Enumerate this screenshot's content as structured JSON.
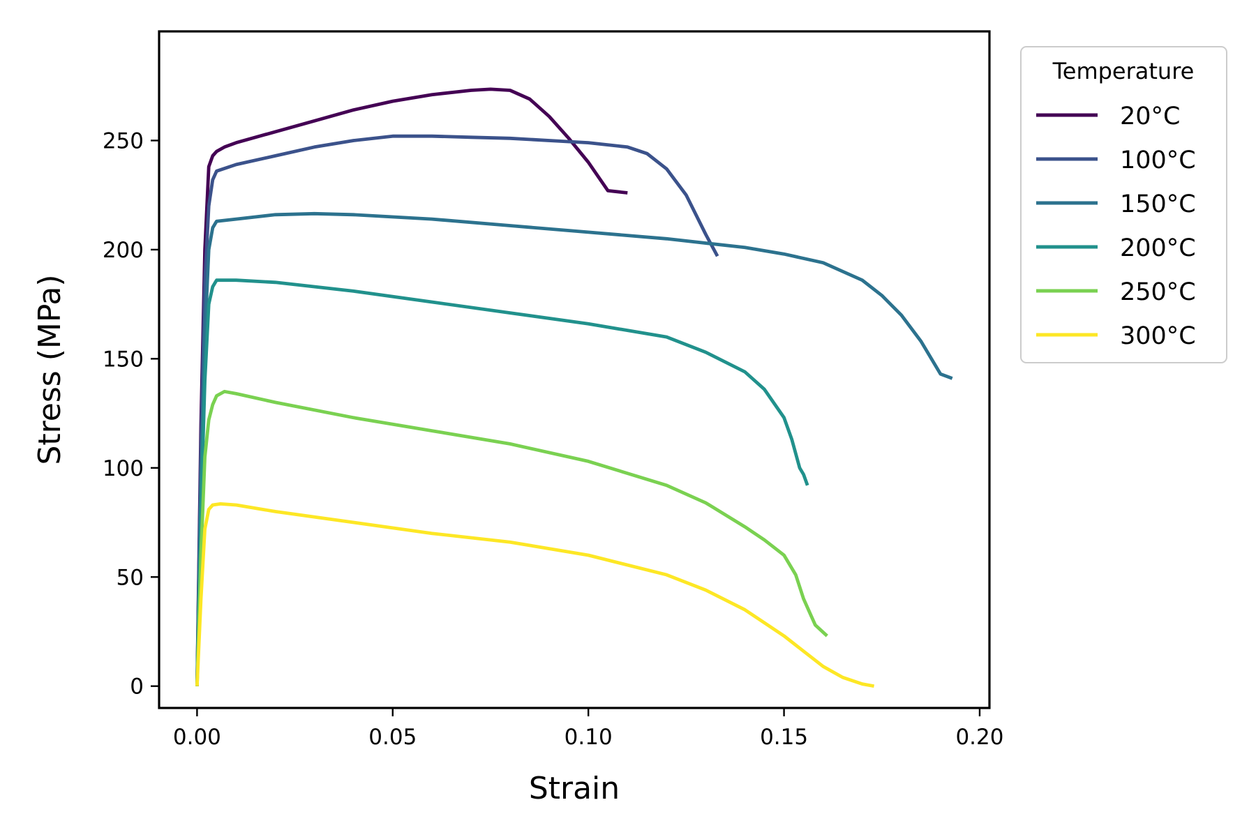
{
  "chart_data": {
    "type": "line",
    "title": "",
    "xlabel": "Strain",
    "ylabel": "Stress (MPa)",
    "xlim": [
      -0.0097,
      0.2025
    ],
    "ylim": [
      -10,
      300
    ],
    "xticks": [
      0.0,
      0.05,
      0.1,
      0.15,
      0.2
    ],
    "xtick_labels": [
      "0.00",
      "0.05",
      "0.10",
      "0.15",
      "0.20"
    ],
    "yticks": [
      0,
      50,
      100,
      150,
      200,
      250
    ],
    "ytick_labels": [
      "0",
      "50",
      "100",
      "150",
      "200",
      "250"
    ],
    "grid": false,
    "legend": {
      "title": "Temperature",
      "position": "outside-top-right"
    },
    "series": [
      {
        "name": "20°C",
        "color": "#440154",
        "x": [
          0.0,
          0.001,
          0.002,
          0.003,
          0.004,
          0.005,
          0.007,
          0.01,
          0.02,
          0.03,
          0.04,
          0.05,
          0.06,
          0.07,
          0.075,
          0.08,
          0.085,
          0.09,
          0.095,
          0.1,
          0.105,
          0.11
        ],
        "y": [
          0,
          120,
          200,
          238,
          243,
          245,
          247,
          249,
          254,
          259,
          264,
          268,
          271,
          273,
          273.5,
          273,
          269,
          261,
          251,
          240,
          227,
          226
        ]
      },
      {
        "name": "100°C",
        "color": "#3b528b",
        "x": [
          0.0,
          0.001,
          0.002,
          0.003,
          0.004,
          0.005,
          0.01,
          0.02,
          0.03,
          0.04,
          0.05,
          0.06,
          0.07,
          0.08,
          0.09,
          0.1,
          0.11,
          0.115,
          0.12,
          0.125,
          0.13,
          0.133
        ],
        "y": [
          0,
          110,
          185,
          220,
          232,
          236,
          239,
          243,
          247,
          250,
          252,
          252,
          251.5,
          251,
          250,
          249,
          247,
          244,
          237,
          225,
          207,
          197
        ]
      },
      {
        "name": "150°C",
        "color": "#2c728e",
        "x": [
          0.0,
          0.001,
          0.002,
          0.003,
          0.004,
          0.005,
          0.01,
          0.02,
          0.03,
          0.04,
          0.06,
          0.08,
          0.1,
          0.12,
          0.14,
          0.15,
          0.16,
          0.17,
          0.175,
          0.18,
          0.185,
          0.19,
          0.193
        ],
        "y": [
          0,
          90,
          160,
          200,
          210,
          213,
          214,
          216,
          216.5,
          216,
          214,
          211,
          208,
          205,
          201,
          198,
          194,
          186,
          179,
          170,
          158,
          143,
          141
        ]
      },
      {
        "name": "200°C",
        "color": "#21918c",
        "x": [
          0.0,
          0.001,
          0.002,
          0.003,
          0.004,
          0.005,
          0.01,
          0.02,
          0.04,
          0.06,
          0.08,
          0.1,
          0.12,
          0.13,
          0.14,
          0.145,
          0.15,
          0.152,
          0.154,
          0.155,
          0.156
        ],
        "y": [
          0,
          80,
          140,
          175,
          183,
          186,
          186,
          185,
          181,
          176,
          171,
          166,
          160,
          153,
          144,
          136,
          123,
          113,
          100,
          97,
          92
        ]
      },
      {
        "name": "250°C",
        "color": "#7ad151",
        "x": [
          0.0,
          0.001,
          0.002,
          0.003,
          0.004,
          0.005,
          0.007,
          0.01,
          0.02,
          0.04,
          0.06,
          0.08,
          0.1,
          0.12,
          0.13,
          0.14,
          0.145,
          0.15,
          0.153,
          0.155,
          0.157,
          0.158,
          0.161
        ],
        "y": [
          0,
          60,
          105,
          122,
          129,
          133,
          135,
          134,
          130,
          123,
          117,
          111,
          103,
          92,
          84,
          73,
          67,
          60,
          51,
          40,
          32,
          28,
          23
        ]
      },
      {
        "name": "300°C",
        "color": "#fde725",
        "x": [
          0.0,
          0.001,
          0.002,
          0.003,
          0.004,
          0.006,
          0.01,
          0.02,
          0.04,
          0.06,
          0.08,
          0.1,
          0.12,
          0.13,
          0.14,
          0.15,
          0.155,
          0.16,
          0.165,
          0.17,
          0.173
        ],
        "y": [
          0,
          40,
          72,
          81,
          83,
          83.5,
          83,
          80,
          75,
          70,
          66,
          60,
          51,
          44,
          35,
          23,
          16,
          9,
          4,
          1,
          0
        ]
      }
    ]
  }
}
